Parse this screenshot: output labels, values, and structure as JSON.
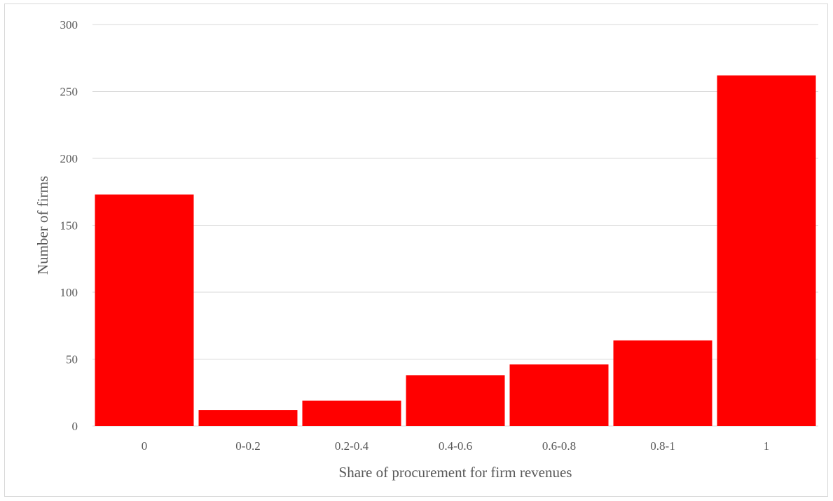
{
  "chart_data": {
    "type": "bar",
    "title": "",
    "xlabel": "Share of procurement for firm revenues",
    "ylabel": "Number of firms",
    "categories": [
      "0",
      "0-0.2",
      "0.2-0.4",
      "0.4-0.6",
      "0.6-0.8",
      "0.8-1",
      "1"
    ],
    "values": [
      173,
      12,
      19,
      38,
      46,
      64,
      262
    ],
    "ylim": [
      0,
      300
    ],
    "yticks": [
      "0",
      "50",
      "100",
      "150",
      "200",
      "250",
      "300"
    ],
    "grid": true,
    "legend": "none",
    "bar_color": "#ff0000",
    "grid_color": "#d9d9d9",
    "text_color": "#595959"
  }
}
